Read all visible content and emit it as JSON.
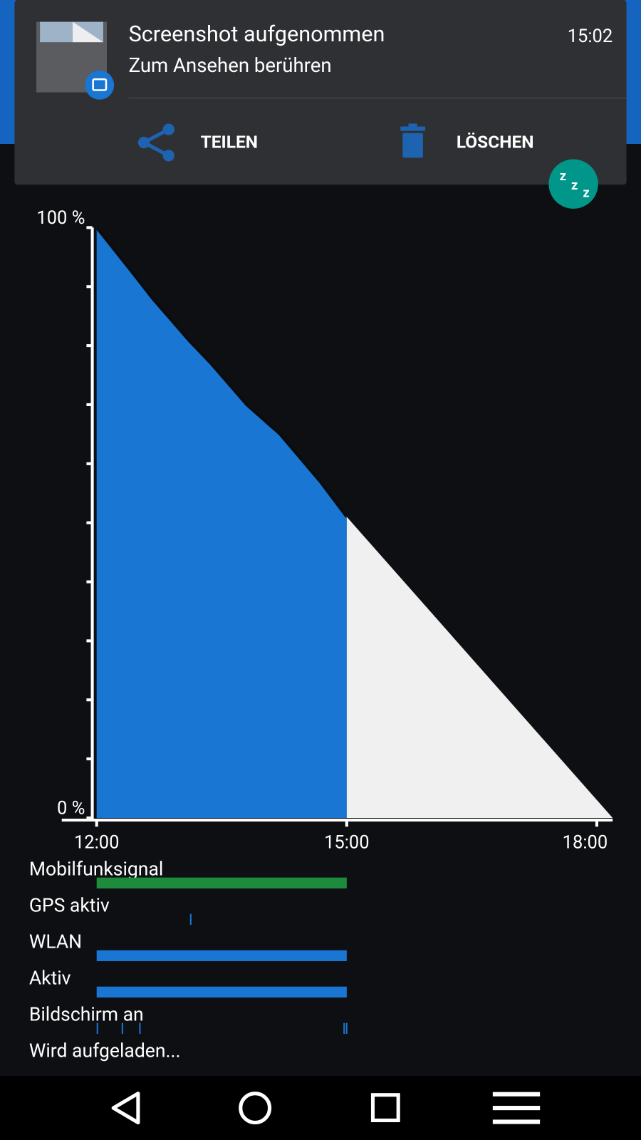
{
  "notification": {
    "title": "Screenshot aufgenommen",
    "subtitle": "Zum Ansehen berühren",
    "time": "15:02",
    "actions": [
      "TEILEN",
      "LÖSCHEN"
    ]
  },
  "chart_data": {
    "type": "area",
    "x": [
      12,
      12.45,
      12.67,
      13.1,
      13.37,
      13.8,
      14.2,
      14.68,
      15,
      18.19
    ],
    "series": [
      {
        "color": "#1976d2",
        "values": [
          100,
          92,
          88,
          81,
          77,
          70,
          65,
          57,
          51,
          null
        ]
      },
      {
        "color": "#f0f0f0",
        "values": [
          null,
          null,
          null,
          null,
          null,
          null,
          null,
          null,
          51,
          0
        ]
      }
    ],
    "xlim": [
      12,
      18.19
    ],
    "ylim": [
      0,
      100
    ],
    "xticks": [
      {
        "value": 12,
        "label": "12:00"
      },
      {
        "value": 15,
        "label": "15:00"
      },
      {
        "value": 18,
        "label": "18:00"
      }
    ],
    "yticks": [
      {
        "value": 0,
        "label": "0 %"
      },
      {
        "value": 100,
        "label": "100 %"
      }
    ],
    "minor_yticks": [
      10,
      20,
      30,
      40,
      50,
      60,
      70,
      80,
      90
    ]
  },
  "activity": {
    "rows": [
      {
        "label": "Mobilfunksignal",
        "color": "#1e8a3c",
        "spans": [
          [
            12,
            15
          ]
        ]
      },
      {
        "label": "GPS aktiv",
        "color": "#1976d2",
        "spans": [
          [
            13.12,
            13.13
          ]
        ]
      },
      {
        "label": "WLAN",
        "color": "#1976d2",
        "spans": [
          [
            12,
            15
          ]
        ]
      },
      {
        "label": "Aktiv",
        "color": "#1976d2",
        "spans": [
          [
            12,
            15
          ]
        ]
      },
      {
        "label": "Bildschirm an",
        "color": "#1976d2",
        "spans": [
          [
            12,
            12.01
          ],
          [
            12.3,
            12.31
          ],
          [
            12.51,
            12.52
          ],
          [
            14.96,
            14.97
          ],
          [
            14.99,
            15
          ]
        ]
      },
      {
        "label": "Wird aufgeladen...",
        "color": "#1976d2",
        "spans": []
      }
    ]
  }
}
